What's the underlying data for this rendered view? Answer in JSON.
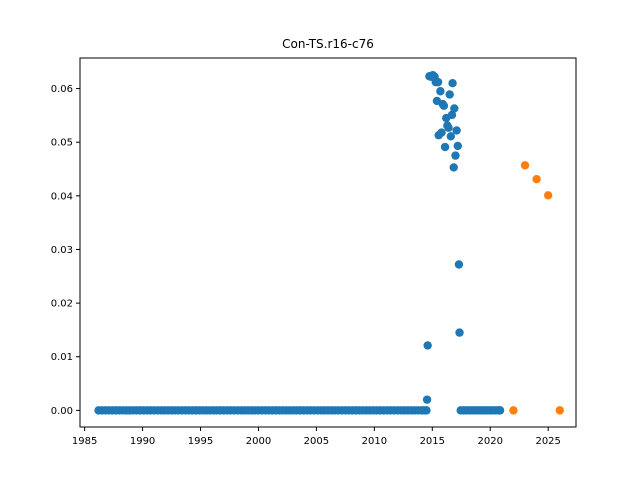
{
  "chart_data": {
    "type": "scatter",
    "title": "Con-TS.r16-c76",
    "xlabel": "",
    "ylabel": "",
    "xlim": [
      1984.6,
      2027.4
    ],
    "ylim": [
      -0.0031,
      0.0657
    ],
    "x_ticks": [
      "1985",
      "1990",
      "1995",
      "2000",
      "2005",
      "2010",
      "2015",
      "2020",
      "2025"
    ],
    "y_ticks": [
      "0.00",
      "0.01",
      "0.02",
      "0.03",
      "0.04",
      "0.05",
      "0.06"
    ],
    "grid": false,
    "series": [
      {
        "color": "#1f77b4",
        "points": [
          [
            1986.2,
            0.0
          ],
          [
            1986.5,
            0.0
          ],
          [
            1986.8,
            0.0
          ],
          [
            1987.1,
            0.0
          ],
          [
            1987.4,
            0.0
          ],
          [
            1987.7,
            0.0
          ],
          [
            1988.0,
            0.0
          ],
          [
            1988.3,
            0.0
          ],
          [
            1988.6,
            0.0
          ],
          [
            1988.9,
            0.0
          ],
          [
            1989.2,
            0.0
          ],
          [
            1989.5,
            0.0
          ],
          [
            1989.8,
            0.0
          ],
          [
            1990.1,
            0.0
          ],
          [
            1990.4,
            0.0
          ],
          [
            1990.7,
            0.0
          ],
          [
            1991.0,
            0.0
          ],
          [
            1991.3,
            0.0
          ],
          [
            1991.6,
            0.0
          ],
          [
            1991.9,
            0.0
          ],
          [
            1992.2,
            0.0
          ],
          [
            1992.5,
            0.0
          ],
          [
            1992.8,
            0.0
          ],
          [
            1993.1,
            0.0
          ],
          [
            1993.4,
            0.0
          ],
          [
            1993.7,
            0.0
          ],
          [
            1994.0,
            0.0
          ],
          [
            1994.3,
            0.0
          ],
          [
            1994.6,
            0.0
          ],
          [
            1994.9,
            0.0
          ],
          [
            1995.2,
            0.0
          ],
          [
            1995.5,
            0.0
          ],
          [
            1995.8,
            0.0
          ],
          [
            1996.1,
            0.0
          ],
          [
            1996.4,
            0.0
          ],
          [
            1996.7,
            0.0
          ],
          [
            1997.0,
            0.0
          ],
          [
            1997.3,
            0.0
          ],
          [
            1997.6,
            0.0
          ],
          [
            1997.9,
            0.0
          ],
          [
            1998.2,
            0.0
          ],
          [
            1998.5,
            0.0
          ],
          [
            1998.8,
            0.0
          ],
          [
            1999.1,
            0.0
          ],
          [
            1999.4,
            0.0
          ],
          [
            1999.7,
            0.0
          ],
          [
            2000.0,
            0.0
          ],
          [
            2000.3,
            0.0
          ],
          [
            2000.6,
            0.0
          ],
          [
            2000.9,
            0.0
          ],
          [
            2001.2,
            0.0
          ],
          [
            2001.5,
            0.0
          ],
          [
            2001.8,
            0.0
          ],
          [
            2002.1,
            0.0
          ],
          [
            2002.4,
            0.0
          ],
          [
            2002.7,
            0.0
          ],
          [
            2003.0,
            0.0
          ],
          [
            2003.3,
            0.0
          ],
          [
            2003.6,
            0.0
          ],
          [
            2003.9,
            0.0
          ],
          [
            2004.2,
            0.0
          ],
          [
            2004.5,
            0.0
          ],
          [
            2004.8,
            0.0
          ],
          [
            2005.1,
            0.0
          ],
          [
            2005.4,
            0.0
          ],
          [
            2005.7,
            0.0
          ],
          [
            2006.0,
            0.0
          ],
          [
            2006.3,
            0.0
          ],
          [
            2006.6,
            0.0
          ],
          [
            2006.9,
            0.0
          ],
          [
            2007.2,
            0.0
          ],
          [
            2007.5,
            0.0
          ],
          [
            2007.8,
            0.0
          ],
          [
            2008.1,
            0.0
          ],
          [
            2008.4,
            0.0
          ],
          [
            2008.7,
            0.0
          ],
          [
            2009.0,
            0.0
          ],
          [
            2009.3,
            0.0
          ],
          [
            2009.6,
            0.0
          ],
          [
            2009.9,
            0.0
          ],
          [
            2010.2,
            0.0
          ],
          [
            2010.5,
            0.0
          ],
          [
            2010.8,
            0.0
          ],
          [
            2011.1,
            0.0
          ],
          [
            2011.4,
            0.0
          ],
          [
            2011.7,
            0.0
          ],
          [
            2012.0,
            0.0
          ],
          [
            2012.3,
            0.0
          ],
          [
            2012.6,
            0.0
          ],
          [
            2012.9,
            0.0
          ],
          [
            2013.2,
            0.0
          ],
          [
            2013.5,
            0.0
          ],
          [
            2013.8,
            0.0
          ],
          [
            2014.1,
            0.0
          ],
          [
            2014.3,
            0.0
          ],
          [
            2014.5,
            0.0
          ],
          [
            2014.55,
            0.002
          ],
          [
            2014.6,
            0.0121
          ],
          [
            2014.75,
            0.0623
          ],
          [
            2014.9,
            0.0622
          ],
          [
            2015.05,
            0.0625
          ],
          [
            2015.2,
            0.0622
          ],
          [
            2015.3,
            0.0612
          ],
          [
            2015.4,
            0.0577
          ],
          [
            2015.5,
            0.0612
          ],
          [
            2015.55,
            0.0513
          ],
          [
            2015.7,
            0.0595
          ],
          [
            2015.8,
            0.0518
          ],
          [
            2015.9,
            0.0571
          ],
          [
            2016.0,
            0.0568
          ],
          [
            2016.1,
            0.0491
          ],
          [
            2016.2,
            0.0545
          ],
          [
            2016.3,
            0.0531
          ],
          [
            2016.4,
            0.0527
          ],
          [
            2016.5,
            0.0589
          ],
          [
            2016.6,
            0.0511
          ],
          [
            2016.7,
            0.0551
          ],
          [
            2016.75,
            0.061
          ],
          [
            2016.85,
            0.0453
          ],
          [
            2016.9,
            0.0563
          ],
          [
            2017.0,
            0.0475
          ],
          [
            2017.1,
            0.0522
          ],
          [
            2017.2,
            0.0493
          ],
          [
            2017.3,
            0.0272
          ],
          [
            2017.35,
            0.0145
          ],
          [
            2017.45,
            0.0
          ],
          [
            2017.7,
            0.0
          ],
          [
            2017.95,
            0.0
          ],
          [
            2018.2,
            0.0
          ],
          [
            2018.45,
            0.0
          ],
          [
            2018.7,
            0.0
          ],
          [
            2018.95,
            0.0
          ],
          [
            2019.2,
            0.0
          ],
          [
            2019.45,
            0.0
          ],
          [
            2019.7,
            0.0
          ],
          [
            2019.95,
            0.0
          ],
          [
            2020.2,
            0.0
          ],
          [
            2020.45,
            0.0
          ],
          [
            2020.7,
            0.0
          ],
          [
            2020.85,
            0.0
          ]
        ]
      },
      {
        "color": "#ff7f0e",
        "points": [
          [
            2022.0,
            0.0
          ],
          [
            2023.0,
            0.0457
          ],
          [
            2024.0,
            0.0431
          ],
          [
            2025.0,
            0.0401
          ],
          [
            2026.0,
            0.0
          ]
        ]
      }
    ]
  }
}
